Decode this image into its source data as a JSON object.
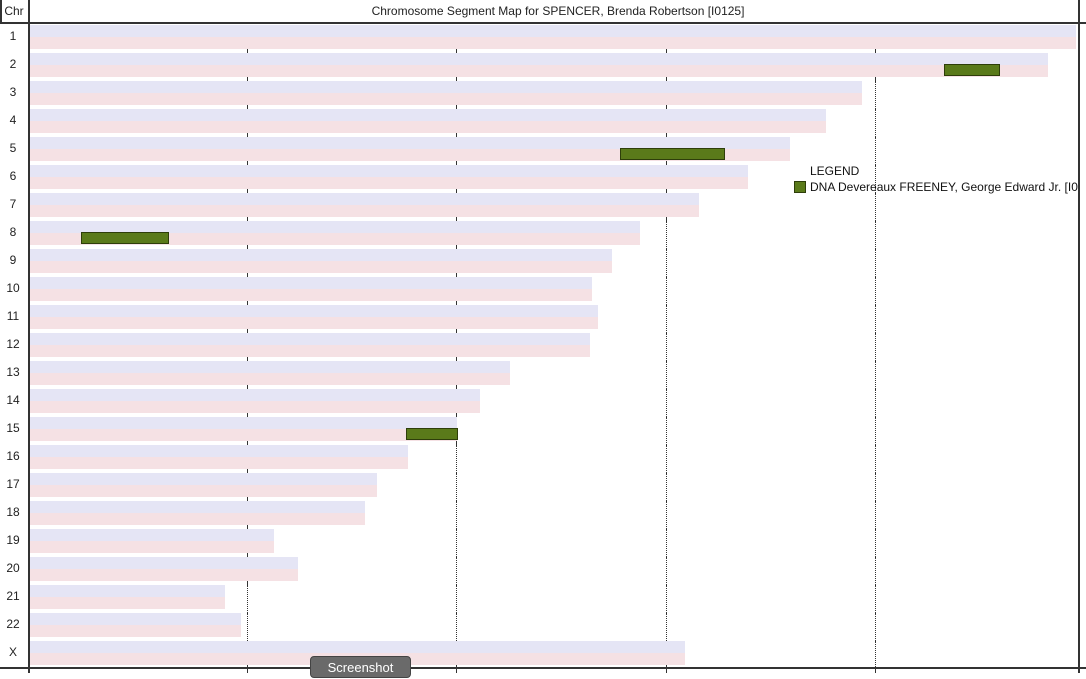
{
  "header": {
    "chr_label": "Chr",
    "title": "Chromosome Segment Map for SPENCER, Brenda Robertson [I0125]"
  },
  "chromosomes": [
    {
      "name": "1",
      "length": 1.0
    },
    {
      "name": "2",
      "length": 0.973
    },
    {
      "name": "3",
      "length": 0.795
    },
    {
      "name": "4",
      "length": 0.761
    },
    {
      "name": "5",
      "length": 0.727
    },
    {
      "name": "6",
      "length": 0.686
    },
    {
      "name": "7",
      "length": 0.64
    },
    {
      "name": "8",
      "length": 0.583
    },
    {
      "name": "9",
      "length": 0.556
    },
    {
      "name": "10",
      "length": 0.537
    },
    {
      "name": "11",
      "length": 0.543
    },
    {
      "name": "12",
      "length": 0.535
    },
    {
      "name": "13",
      "length": 0.459
    },
    {
      "name": "14",
      "length": 0.43
    },
    {
      "name": "15",
      "length": 0.408
    },
    {
      "name": "16",
      "length": 0.361
    },
    {
      "name": "17",
      "length": 0.332
    },
    {
      "name": "18",
      "length": 0.32
    },
    {
      "name": "19",
      "length": 0.233
    },
    {
      "name": "20",
      "length": 0.256
    },
    {
      "name": "21",
      "length": 0.186
    },
    {
      "name": "22",
      "length": 0.202
    },
    {
      "name": "X",
      "length": 0.626
    }
  ],
  "segments": [
    {
      "chr": "2",
      "start": 0.874,
      "end": 0.928
    },
    {
      "chr": "5",
      "start": 0.564,
      "end": 0.664
    },
    {
      "chr": "8",
      "start": 0.049,
      "end": 0.133
    },
    {
      "chr": "15",
      "start": 0.359,
      "end": 0.409
    }
  ],
  "grid_ticks": [
    0.2,
    0.4,
    0.6,
    0.8
  ],
  "legend": {
    "title": "LEGEND",
    "entries": [
      {
        "label": "DNA Devereaux FREENEY, George Edward Jr. [I0",
        "color": "#5a7a1a"
      }
    ]
  },
  "screenshot_button": "Screenshot"
}
